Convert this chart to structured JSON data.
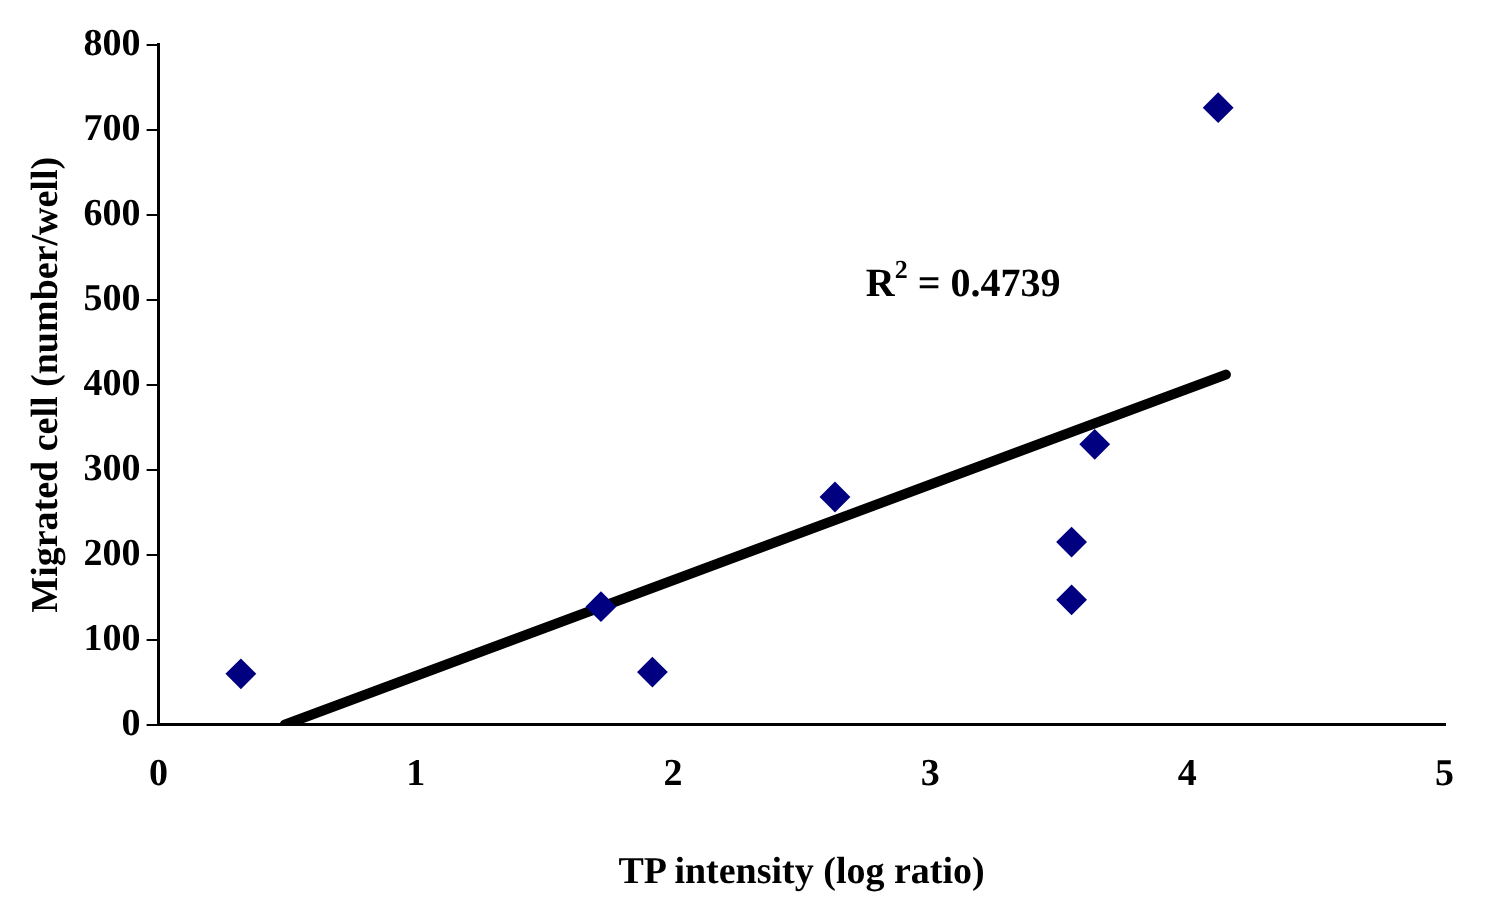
{
  "chart_data": {
    "type": "scatter",
    "xlabel": "TP intensity (log ratio)",
    "ylabel": "Migrated cell (number/well)",
    "xlim": [
      0,
      5
    ],
    "xticks": [
      0,
      1,
      2,
      3,
      4,
      5
    ],
    "ylim": [
      0,
      800
    ],
    "yticks": [
      0,
      100,
      200,
      300,
      400,
      500,
      600,
      700,
      800
    ],
    "grid": false,
    "legend": false,
    "marker": "diamond",
    "series": [
      {
        "color": "#000080",
        "x": [
          0.32,
          1.72,
          1.92,
          2.63,
          3.55,
          3.55,
          3.64,
          4.12
        ],
        "values": [
          60,
          139,
          62,
          268,
          215,
          147,
          330,
          726
        ]
      },
      {
        "type": "line",
        "color": "#000000",
        "x": [
          0.49,
          4.15
        ],
        "values": [
          0,
          412
        ],
        "marker": "none"
      }
    ],
    "annotations": [
      "R$^{2}$ = 0.4739"
    ]
  }
}
